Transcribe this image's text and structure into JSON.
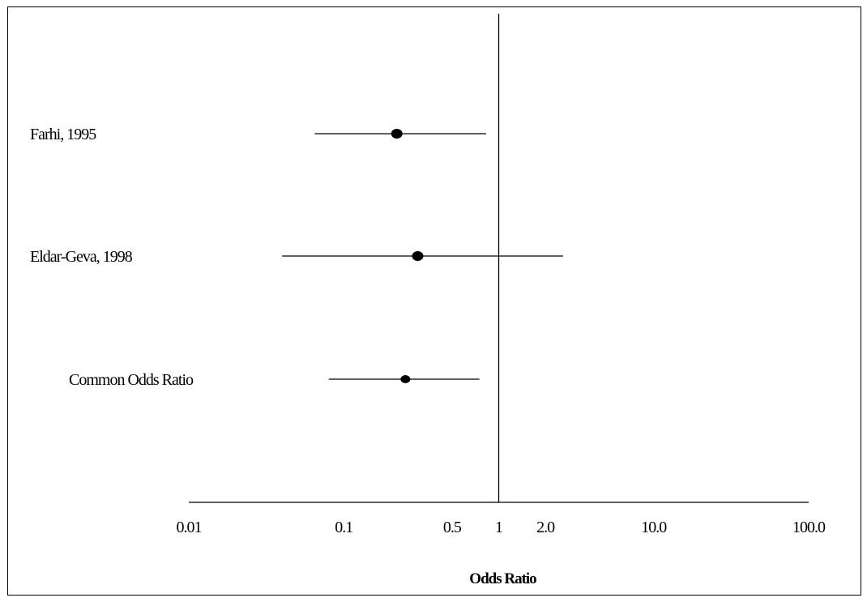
{
  "chart_data": {
    "type": "forest",
    "scale": "log",
    "xlabel": "Odds Ratio",
    "xlim": [
      0.01,
      100.0
    ],
    "reference_line": 1,
    "ticks": [
      {
        "value": 0.01,
        "label": "0.01"
      },
      {
        "value": 0.1,
        "label": "0.1"
      },
      {
        "value": 0.5,
        "label": "0.5"
      },
      {
        "value": 1,
        "label": "1"
      },
      {
        "value": 2.0,
        "label": "2.0"
      },
      {
        "value": 10.0,
        "label": "10.0"
      },
      {
        "value": 100.0,
        "label": "100.0"
      }
    ],
    "rows": [
      {
        "label": "Farhi, 1995",
        "or": 0.22,
        "ci_low": 0.065,
        "ci_high": 0.83,
        "marker": "large",
        "label_indent": false
      },
      {
        "label": "Eldar-Geva, 1998",
        "or": 0.3,
        "ci_low": 0.04,
        "ci_high": 2.6,
        "marker": "large",
        "label_indent": false
      },
      {
        "label": "Common Odds Ratio",
        "or": 0.25,
        "ci_low": 0.08,
        "ci_high": 0.75,
        "marker": "small",
        "label_indent": true
      }
    ],
    "grid": false
  }
}
